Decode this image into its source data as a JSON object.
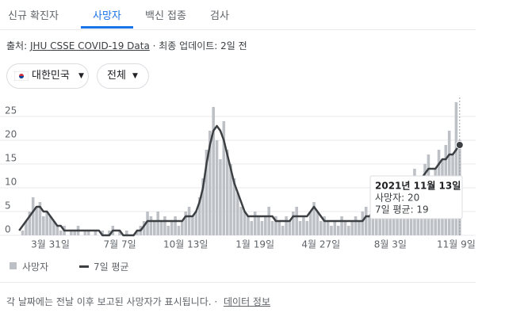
{
  "tabs": [
    "신규 확진자",
    "사망자",
    "백신 접종",
    "검사"
  ],
  "source": {
    "prefix": "출처:",
    "link": "JHU CSSE COVID-19 Data",
    "updated": "· 최종 업데이트: 2일 전"
  },
  "filters": [
    "대한민국",
    "전체"
  ],
  "chart_data": {
    "type": "bar_line",
    "categories": [
      null,
      null,
      null,
      null,
      null,
      null,
      null,
      null,
      null,
      "3월 31일",
      null,
      null,
      null,
      null,
      null,
      null,
      null,
      null,
      null,
      null,
      null,
      null,
      null,
      null,
      null,
      null,
      null,
      null,
      null,
      "7월 7일",
      null,
      null,
      null,
      null,
      null,
      null,
      null,
      null,
      null,
      null,
      null,
      null,
      null,
      null,
      null,
      null,
      null,
      null,
      "10월 13일",
      null,
      null,
      null,
      null,
      null,
      null,
      null,
      null,
      null,
      null,
      null,
      null,
      null,
      null,
      null,
      null,
      null,
      null,
      null,
      "1월 19일",
      null,
      null,
      null,
      null,
      null,
      null,
      null,
      null,
      null,
      null,
      null,
      null,
      null,
      null,
      null,
      null,
      null,
      null,
      "4월 27일",
      null,
      null,
      null,
      null,
      null,
      null,
      null,
      null,
      null,
      null,
      null,
      null,
      null,
      null,
      null,
      null,
      null,
      null,
      null,
      "8월 3일",
      null,
      null,
      null,
      null,
      null,
      null,
      null,
      null,
      null,
      null,
      null,
      null,
      null,
      null,
      null,
      null,
      null,
      null,
      "11월 9일",
      null
    ],
    "series": [
      {
        "name": "사망자",
        "color": "#bdc1c6",
        "values": [
          0,
          1,
          3,
          5,
          8,
          6,
          7,
          4,
          5,
          4,
          3,
          2,
          1,
          2,
          0,
          1,
          1,
          2,
          0,
          1,
          1,
          0,
          1,
          0,
          1,
          0,
          1,
          2,
          0,
          1,
          0,
          1,
          0,
          0,
          1,
          2,
          3,
          5,
          4,
          3,
          5,
          3,
          4,
          2,
          3,
          4,
          2,
          3,
          5,
          6,
          4,
          5,
          8,
          12,
          18,
          22,
          27,
          20,
          16,
          24,
          18,
          15,
          12,
          9,
          6,
          5,
          4,
          3,
          5,
          4,
          3,
          4,
          6,
          3,
          4,
          3,
          2,
          4,
          3,
          5,
          6,
          3,
          4,
          3,
          5,
          7,
          5,
          3,
          4,
          3,
          2,
          3,
          2,
          4,
          3,
          2,
          3,
          4,
          3,
          5,
          6,
          4,
          7,
          5,
          12,
          6,
          8,
          5,
          7,
          9,
          8,
          12,
          10,
          9,
          14,
          11,
          12,
          15,
          17,
          12,
          14,
          18,
          16,
          19,
          22,
          17,
          28,
          20
        ]
      },
      {
        "name": "7일 평균",
        "color": "#3c4043",
        "values": [
          1,
          2,
          3,
          4,
          5,
          6,
          6,
          5,
          5,
          4,
          3,
          2,
          2,
          1,
          1,
          1,
          1,
          1,
          1,
          1,
          1,
          1,
          1,
          1,
          0,
          0,
          0,
          1,
          1,
          1,
          0,
          0,
          0,
          0,
          1,
          1,
          2,
          3,
          3,
          3,
          3,
          3,
          3,
          3,
          3,
          3,
          3,
          3,
          4,
          4,
          4,
          5,
          7,
          10,
          15,
          19,
          22,
          23,
          22,
          20,
          17,
          14,
          11,
          9,
          7,
          5,
          4,
          4,
          4,
          4,
          4,
          4,
          4,
          4,
          3,
          3,
          3,
          3,
          3,
          4,
          4,
          4,
          4,
          4,
          5,
          6,
          5,
          4,
          3,
          3,
          3,
          3,
          3,
          3,
          3,
          3,
          3,
          3,
          3,
          3,
          4,
          4,
          5,
          5,
          6,
          6,
          7,
          6,
          7,
          7,
          8,
          9,
          9,
          10,
          10,
          11,
          12,
          13,
          14,
          14,
          14,
          15,
          16,
          16,
          17,
          17,
          18,
          19
        ]
      }
    ],
    "ylim": [
      0,
      29
    ],
    "yticks": [
      0,
      5,
      10,
      15,
      20,
      25
    ],
    "grid": true,
    "tooltip": {
      "date": "2021년 11월 13일",
      "lines": [
        "사망자: 20",
        "7일 평균: 19"
      ]
    }
  },
  "footer": {
    "note": "각 날짜에는 전날 이후 보고된 사망자가 표시됩니다. ·",
    "link": "데이터 정보"
  }
}
